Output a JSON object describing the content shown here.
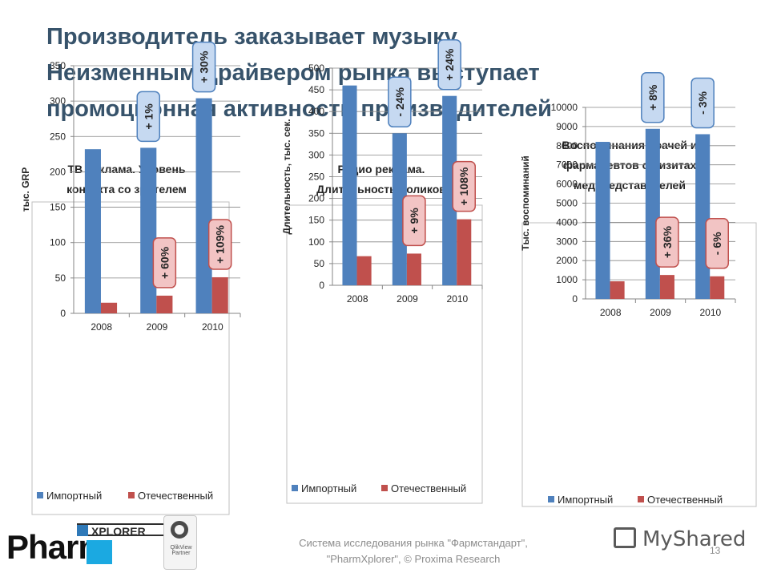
{
  "title_lines": [
    "Производитель заказывает музыку",
    "Неизменным драйвером рынка выступает",
    "промоционная активность производителей"
  ],
  "colors": {
    "import": "#4f81bd",
    "domestic": "#c0504d",
    "title": "#37536b",
    "callout_blue_fill": "#c6d9f1",
    "callout_blue_stroke": "#4f81bd",
    "callout_red_fill": "#f2c4c4",
    "callout_red_stroke": "#c0504d"
  },
  "legend": {
    "import": "Импортный",
    "domestic": "Отечественный"
  },
  "chart_data": [
    {
      "type": "bar",
      "title_lines": [
        "ТВ реклама. Уровень",
        "контакта со зрителем"
      ],
      "ylabel": "тыс. GRP",
      "categories": [
        "2008",
        "2009",
        "2010"
      ],
      "ylim": [
        0,
        350
      ],
      "yticks": [
        "0",
        "50",
        "100",
        "150",
        "200",
        "250",
        "300",
        "350"
      ],
      "series": [
        {
          "name": "Импортный",
          "values": [
            232,
            234,
            304
          ]
        },
        {
          "name": "Отечественный",
          "values": [
            15,
            25,
            51
          ]
        }
      ],
      "callouts_import": [
        "",
        "+ 1%",
        "+ 30%"
      ],
      "callouts_domestic": [
        "",
        "+ 60%",
        "+ 109%"
      ]
    },
    {
      "type": "bar",
      "title_lines": [
        "Радио реклама.",
        "Длительность роликов"
      ],
      "ylabel": "Длительность, тыс. сек.",
      "categories": [
        "2008",
        "2009",
        "2010"
      ],
      "ylim": [
        0,
        500
      ],
      "yticks": [
        "0",
        "50",
        "100",
        "150",
        "200",
        "250",
        "300",
        "350",
        "400",
        "450",
        "500"
      ],
      "series": [
        {
          "name": "Импортный",
          "values": [
            460,
            350,
            436
          ]
        },
        {
          "name": "Отечественный",
          "values": [
            67,
            73,
            152
          ]
        }
      ],
      "callouts_import": [
        "",
        "- 24%",
        "+ 24%"
      ],
      "callouts_domestic": [
        "",
        "+ 9%",
        "+ 108%"
      ]
    },
    {
      "type": "bar",
      "title_lines": [
        "Воспоминания врачей и",
        "фармацевтов о визитах",
        "медпредставителей"
      ],
      "ylabel": "Тыс. воспоминаний",
      "categories": [
        "2008",
        "2009",
        "2010"
      ],
      "ylim": [
        0,
        10000
      ],
      "yticks": [
        "0",
        "1000",
        "2000",
        "3000",
        "4000",
        "5000",
        "6000",
        "7000",
        "8000",
        "9000",
        "10000"
      ],
      "series": [
        {
          "name": "Импортный",
          "values": [
            8200,
            8880,
            8600
          ]
        },
        {
          "name": "Отечественный",
          "values": [
            920,
            1250,
            1180
          ]
        }
      ],
      "callouts_import": [
        "",
        "+ 8%",
        "- 3%"
      ],
      "callouts_domestic": [
        "",
        "+ 36%",
        "- 6%"
      ]
    }
  ],
  "footer": {
    "lines": [
      "Система исследования рынка \"Фармстандарт\",",
      "\"PharmXplorer\", © Proxima Research"
    ],
    "page_number": "13"
  },
  "logos": {
    "pharm": "Pharm",
    "xplorer": "XPLORER",
    "qlik": "QlikView Partner",
    "myshared": "MyShared"
  }
}
